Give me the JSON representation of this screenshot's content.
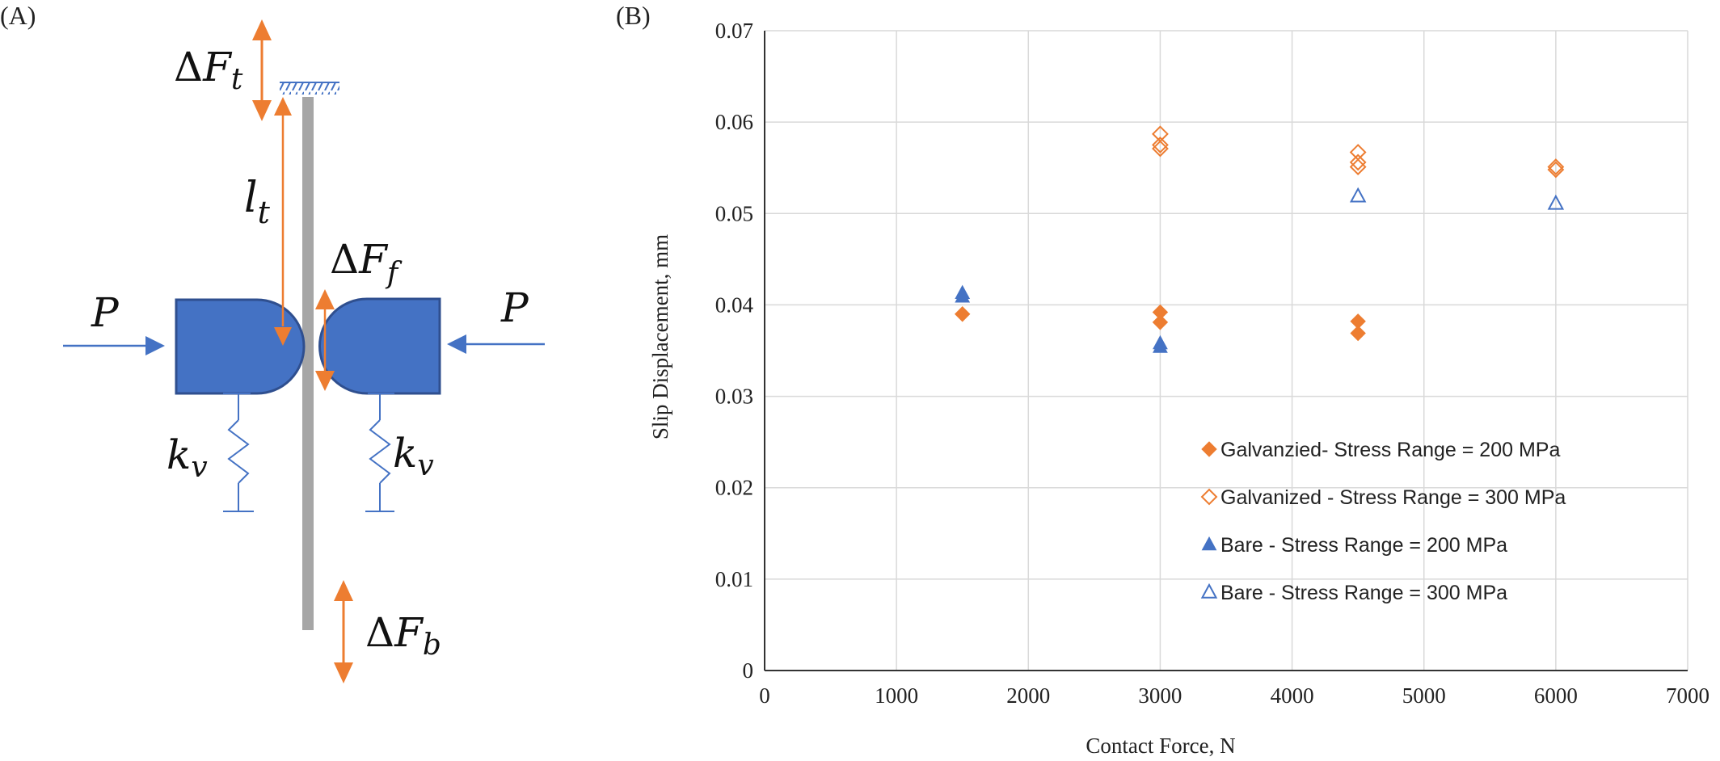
{
  "diagram": {
    "panel_label": "(A)",
    "symbols": {
      "delta": "Δ",
      "force_t": "F",
      "force_t_sub": "t",
      "length": "l",
      "length_sub": "t",
      "force_f": "F",
      "force_f_sub": "f",
      "force_b": "F",
      "force_b_sub": "b",
      "load_left": "P",
      "load_right": "P",
      "spring_left": "k",
      "spring_left_sub": "v",
      "spring_right": "k",
      "spring_right_sub": "v"
    },
    "colors": {
      "pad": "#4472C4",
      "pad_stroke": "#2F4F8F",
      "arrow_orange": "#ED7D31",
      "arrow_blue": "#4472C4",
      "strip": "#A6A6A6"
    }
  },
  "chart_data": {
    "panel_label": "(B)",
    "type": "scatter",
    "title": "",
    "xlabel": "Contact Force, N",
    "ylabel": "Slip Displacement, mm",
    "xlim": [
      0,
      7000
    ],
    "ylim": [
      0,
      0.07
    ],
    "x_ticks": [
      0,
      1000,
      2000,
      3000,
      4000,
      5000,
      6000,
      7000
    ],
    "y_ticks": [
      0,
      0.01,
      0.02,
      0.03,
      0.04,
      0.05,
      0.06,
      0.07
    ],
    "y_tick_labels": [
      "0",
      "0.01",
      "0.02",
      "0.03",
      "0.04",
      "0.05",
      "0.06",
      "0.07"
    ],
    "grid": true,
    "legend_position": "bottom-right",
    "series": [
      {
        "name": "Galvanzied- Stress Range = 200 MPa",
        "marker": "diamond-filled",
        "color": "#ED7D31",
        "points": [
          [
            1500,
            0.039
          ],
          [
            3000,
            0.0392
          ],
          [
            3000,
            0.0381
          ],
          [
            4500,
            0.0382
          ],
          [
            4500,
            0.0369
          ]
        ]
      },
      {
        "name": "Galvanized - Stress Range = 300 MPa",
        "marker": "diamond-open",
        "color": "#ED7D31",
        "points": [
          [
            3000,
            0.0587
          ],
          [
            3000,
            0.0575
          ],
          [
            3000,
            0.0571
          ],
          [
            4500,
            0.0567
          ],
          [
            4500,
            0.0556
          ],
          [
            4500,
            0.0551
          ],
          [
            6000,
            0.0551
          ],
          [
            6000,
            0.0548
          ]
        ]
      },
      {
        "name": "Bare - Stress Range = 200 MPa",
        "marker": "triangle-filled",
        "color": "#4472C4",
        "points": [
          [
            1500,
            0.0413
          ],
          [
            1500,
            0.0409
          ],
          [
            3000,
            0.0358
          ],
          [
            3000,
            0.0354
          ]
        ]
      },
      {
        "name": "Bare - Stress Range = 300 MPa",
        "marker": "triangle-open",
        "color": "#4472C4",
        "points": [
          [
            4500,
            0.0519
          ],
          [
            6000,
            0.0511
          ]
        ]
      }
    ]
  }
}
